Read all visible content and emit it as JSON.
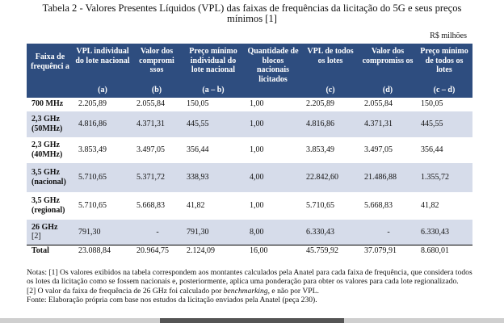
{
  "title_line1": "Tabela 2 - Valores Presentes Líquidos (VPL) das faixas de frequências da licitação do 5G e seus preços",
  "title_line2": "mínimos [1]",
  "unit": "R$ milhões",
  "headers": [
    {
      "label": "Faixa de frequênci a",
      "code": ""
    },
    {
      "label": "VPL individual do lote nacional",
      "code": "(a)"
    },
    {
      "label": "Valor dos compromi ssos",
      "code": "(b)"
    },
    {
      "label": "Preço mínimo individual do lote nacional",
      "code": "(a – b)"
    },
    {
      "label": "Quantidade de blocos nacionais licitados",
      "code": ""
    },
    {
      "label": "VPL de todos os lotes",
      "code": "(c)"
    },
    {
      "label": "Valor dos compromiss os",
      "code": "(d)"
    },
    {
      "label": "Preço mínimo de todos os lotes",
      "code": "(c – d)"
    }
  ],
  "rows": [
    {
      "band": "700 MHz",
      "band_sub": "",
      "vals": [
        "2.205,89",
        "2.055,84",
        "150,05",
        "1,00",
        "2.205,89",
        "2.055,84",
        "150,05"
      ]
    },
    {
      "band": "2,3 GHz",
      "band_sub": "(50MHz)",
      "vals": [
        "4.816,86",
        "4.371,31",
        "445,55",
        "1,00",
        "4.816,86",
        "4.371,31",
        "445,55"
      ]
    },
    {
      "band": "2,3 GHz",
      "band_sub": "(40MHz)",
      "vals": [
        "3.853,49",
        "3.497,05",
        "356,44",
        "1,00",
        "3.853,49",
        "3.497,05",
        "356,44"
      ]
    },
    {
      "band": "3,5 GHz",
      "band_sub": "(nacional)",
      "vals": [
        "5.710,65",
        "5.371,72",
        "338,93",
        "4,00",
        "22.842,60",
        "21.486,88",
        "1.355,72"
      ]
    },
    {
      "band": "3,5 GHz",
      "band_sub": "(regional)",
      "vals": [
        "5.710,65",
        "5.668,83",
        "41,82",
        "1,00",
        "5.710,65",
        "5.668,83",
        "41,82"
      ]
    },
    {
      "band": "26 GHz",
      "band_sub": "[2]",
      "vals": [
        "791,30",
        "-",
        "791,30",
        "8,00",
        "6.330,43",
        "-",
        "6.330,43"
      ]
    },
    {
      "band": "Total",
      "band_sub": "",
      "vals": [
        "23.088,84",
        "20.964,75",
        "2.124,09",
        "16,00",
        "45.759,92",
        "37.079,91",
        "8.680,01"
      ]
    }
  ],
  "notes": {
    "n1": "Notas: [1] Os valores exibidos na tabela correspondem aos montantes calculados pela Anatel para cada faixa de frequência, que considera todos os lotes da licitação como se fossem nacionais e, posteriormente, aplica uma ponderação para obter os valores para cada lote regionalizado.",
    "n2_a": "[2] O valor da faixa de frequência de 26 GHz foi calculado por ",
    "n2_em": "benchmarking",
    "n2_b": ", e não por VPL.",
    "source": "Fonte: Elaboração própria com base nos estudos da licitação enviados pela Anatel (peça 230)."
  },
  "colors": {
    "header_bg": "#2e4d7f",
    "row_shade": "#d6dcea"
  }
}
